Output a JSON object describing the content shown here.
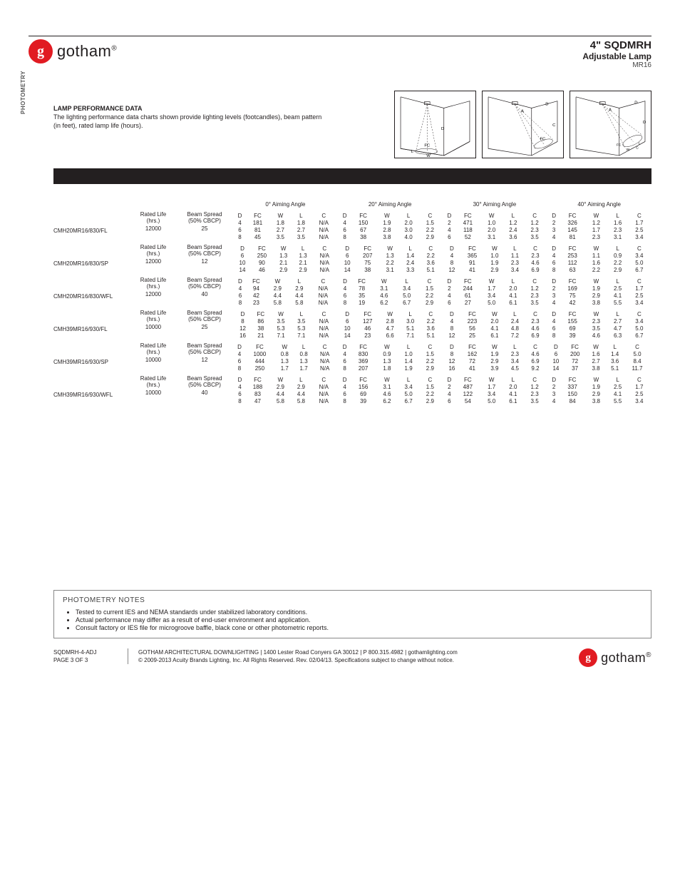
{
  "brand": {
    "name": "gotham",
    "tm": "®",
    "badge_bg": "#e11b22"
  },
  "header": {
    "title": "4\" SQDMRH",
    "subtitle": "Adjustable Lamp",
    "model": "MR16"
  },
  "side_tab": "PHOTOMETRY",
  "lamp_perf": {
    "title": "LAMP PERFORMANCE DATA",
    "desc": "The lighting performance data charts shown provide lighting levels (footcandles), beam pattern (in feet), rated lamp life (hours)."
  },
  "diagram_labels": {
    "d": "D",
    "fc": "FC",
    "w": "W",
    "a": "A",
    "c": "C",
    "l": "L"
  },
  "angle_headers": [
    "0° Aiming Angle",
    "20° Aiming Angle",
    "30° Aiming Angle",
    "40° Aiming Angle"
  ],
  "col_labels": [
    "D",
    "FC",
    "W",
    "L",
    "C"
  ],
  "meta_labels": {
    "rated_h1": "Rated Life",
    "rated_h2": "(hrs.)",
    "beam_h1": "Beam Spread",
    "beam_h2": "(50% CBCP)"
  },
  "lamps": [
    {
      "name": "CMH20MR16/830/FL",
      "rated": "12000",
      "beam": "25",
      "angles": [
        [
          [
            "4",
            "181",
            "1.8",
            "1.8",
            "N/A"
          ],
          [
            "6",
            "81",
            "2.7",
            "2.7",
            "N/A"
          ],
          [
            "8",
            "45",
            "3.5",
            "3.5",
            "N/A"
          ]
        ],
        [
          [
            "4",
            "150",
            "1.9",
            "2.0",
            "1.5"
          ],
          [
            "6",
            "67",
            "2.8",
            "3.0",
            "2.2"
          ],
          [
            "8",
            "38",
            "3.8",
            "4.0",
            "2.9"
          ]
        ],
        [
          [
            "2",
            "471",
            "1.0",
            "1.2",
            "1.2"
          ],
          [
            "4",
            "118",
            "2.0",
            "2.4",
            "2.3"
          ],
          [
            "6",
            "52",
            "3.1",
            "3.6",
            "3.5"
          ]
        ],
        [
          [
            "2",
            "326",
            "1.2",
            "1.6",
            "1.7"
          ],
          [
            "3",
            "145",
            "1.7",
            "2.3",
            "2.5"
          ],
          [
            "4",
            "81",
            "2.3",
            "3.1",
            "3.4"
          ]
        ]
      ]
    },
    {
      "name": "CMH20MR16/830/SP",
      "rated": "12000",
      "beam": "12",
      "angles": [
        [
          [
            "6",
            "250",
            "1.3",
            "1.3",
            "N/A"
          ],
          [
            "10",
            "90",
            "2.1",
            "2.1",
            "N/A"
          ],
          [
            "14",
            "46",
            "2.9",
            "2.9",
            "N/A"
          ]
        ],
        [
          [
            "6",
            "207",
            "1.3",
            "1.4",
            "2.2"
          ],
          [
            "10",
            "75",
            "2.2",
            "2.4",
            "3.6"
          ],
          [
            "14",
            "38",
            "3.1",
            "3.3",
            "5.1"
          ]
        ],
        [
          [
            "4",
            "365",
            "1.0",
            "1.1",
            "2.3"
          ],
          [
            "8",
            "91",
            "1.9",
            "2.3",
            "4.6"
          ],
          [
            "12",
            "41",
            "2.9",
            "3.4",
            "6.9"
          ]
        ],
        [
          [
            "4",
            "253",
            "1.1",
            "0.9",
            "3.4"
          ],
          [
            "6",
            "112",
            "1.6",
            "2.2",
            "5.0"
          ],
          [
            "8",
            "63",
            "2.2",
            "2.9",
            "6.7"
          ]
        ]
      ]
    },
    {
      "name": "CMH20MR16/830/WFL",
      "rated": "12000",
      "beam": "40",
      "angles": [
        [
          [
            "4",
            "94",
            "2.9",
            "2.9",
            "N/A"
          ],
          [
            "6",
            "42",
            "4.4",
            "4.4",
            "N/A"
          ],
          [
            "8",
            "23",
            "5.8",
            "5.8",
            "N/A"
          ]
        ],
        [
          [
            "4",
            "78",
            "3.1",
            "3.4",
            "1.5"
          ],
          [
            "6",
            "35",
            "4.6",
            "5.0",
            "2.2"
          ],
          [
            "8",
            "19",
            "6.2",
            "6.7",
            "2.9"
          ]
        ],
        [
          [
            "2",
            "244",
            "1.7",
            "2.0",
            "1.2"
          ],
          [
            "4",
            "61",
            "3.4",
            "4.1",
            "2.3"
          ],
          [
            "6",
            "27",
            "5.0",
            "6.1",
            "3.5"
          ]
        ],
        [
          [
            "2",
            "169",
            "1.9",
            "2.5",
            "1.7"
          ],
          [
            "3",
            "75",
            "2.9",
            "4.1",
            "2.5"
          ],
          [
            "4",
            "42",
            "3.8",
            "5.5",
            "3.4"
          ]
        ]
      ]
    },
    {
      "name": "CMH39MR16/930/FL",
      "rated": "10000",
      "beam": "25",
      "angles": [
        [
          [
            "8",
            "86",
            "3.5",
            "3.5",
            "N/A"
          ],
          [
            "12",
            "38",
            "5.3",
            "5.3",
            "N/A"
          ],
          [
            "16",
            "21",
            "7.1",
            "7.1",
            "N/A"
          ]
        ],
        [
          [
            "6",
            "127",
            "2.8",
            "3.0",
            "2.2"
          ],
          [
            "10",
            "46",
            "4.7",
            "5.1",
            "3.6"
          ],
          [
            "14",
            "23",
            "6.6",
            "7.1",
            "5.1"
          ]
        ],
        [
          [
            "4",
            "223",
            "2.0",
            "2.4",
            "2.3"
          ],
          [
            "8",
            "56",
            "4.1",
            "4.8",
            "4.6"
          ],
          [
            "12",
            "25",
            "6.1",
            "7.2",
            "6.9"
          ]
        ],
        [
          [
            "4",
            "155",
            "2.3",
            "2.7",
            "3.4"
          ],
          [
            "6",
            "69",
            "3.5",
            "4.7",
            "5.0"
          ],
          [
            "8",
            "39",
            "4.6",
            "6.3",
            "6.7"
          ]
        ]
      ]
    },
    {
      "name": "CMH39MR16/930/SP",
      "rated": "10000",
      "beam": "12",
      "angles": [
        [
          [
            "4",
            "1000",
            "0.8",
            "0.8",
            "N/A"
          ],
          [
            "6",
            "444",
            "1.3",
            "1.3",
            "N/A"
          ],
          [
            "8",
            "250",
            "1.7",
            "1.7",
            "N/A"
          ]
        ],
        [
          [
            "4",
            "830",
            "0.9",
            "1.0",
            "1.5"
          ],
          [
            "6",
            "369",
            "1.3",
            "1.4",
            "2.2"
          ],
          [
            "8",
            "207",
            "1.8",
            "1.9",
            "2.9"
          ]
        ],
        [
          [
            "8",
            "162",
            "1.9",
            "2.3",
            "4.6"
          ],
          [
            "12",
            "72",
            "2.9",
            "3.4",
            "6.9"
          ],
          [
            "16",
            "41",
            "3.9",
            "4.5",
            "9.2"
          ]
        ],
        [
          [
            "6",
            "200",
            "1.6",
            "1.4",
            "5.0"
          ],
          [
            "10",
            "72",
            "2.7",
            "3.6",
            "8.4"
          ],
          [
            "14",
            "37",
            "3.8",
            "5.1",
            "11.7"
          ]
        ]
      ]
    },
    {
      "name": "CMH39MR16/930/WFL",
      "rated": "10000",
      "beam": "40",
      "angles": [
        [
          [
            "4",
            "188",
            "2.9",
            "2.9",
            "N/A"
          ],
          [
            "6",
            "83",
            "4.4",
            "4.4",
            "N/A"
          ],
          [
            "8",
            "47",
            "5.8",
            "5.8",
            "N/A"
          ]
        ],
        [
          [
            "4",
            "156",
            "3.1",
            "3.4",
            "1.5"
          ],
          [
            "6",
            "69",
            "4.6",
            "5.0",
            "2.2"
          ],
          [
            "8",
            "39",
            "6.2",
            "6.7",
            "2.9"
          ]
        ],
        [
          [
            "2",
            "487",
            "1.7",
            "2.0",
            "1.2"
          ],
          [
            "4",
            "122",
            "3.4",
            "4.1",
            "2.3"
          ],
          [
            "6",
            "54",
            "5.0",
            "6.1",
            "3.5"
          ]
        ],
        [
          [
            "2",
            "337",
            "1.9",
            "2.5",
            "1.7"
          ],
          [
            "3",
            "150",
            "2.9",
            "4.1",
            "2.5"
          ],
          [
            "4",
            "84",
            "3.8",
            "5.5",
            "3.4"
          ]
        ]
      ]
    }
  ],
  "notes": {
    "title": "PHOTOMETRY NOTES",
    "items": [
      "Tested to current IES and NEMA standards under stabilized laboratory conditions.",
      "Actual performance may differ as a result of end-user environment and application.",
      "Consult factory or IES file for microgroove baffle, black cone or other photometric reports."
    ]
  },
  "footer": {
    "code": "SQDMRH-4-ADJ",
    "page": "PAGE 3 OF 3",
    "line1": "GOTHAM ARCHITECTURAL DOWNLIGHTING  |  1400 Lester Road Conyers GA 30012  |  P 800.315.4982  |  gothamlighting.com",
    "line2": "© 2009-2013 Acuity Brands Lighting, Inc. All Rights Reserved. Rev. 02/04/13. Specifications subject to change without notice."
  }
}
